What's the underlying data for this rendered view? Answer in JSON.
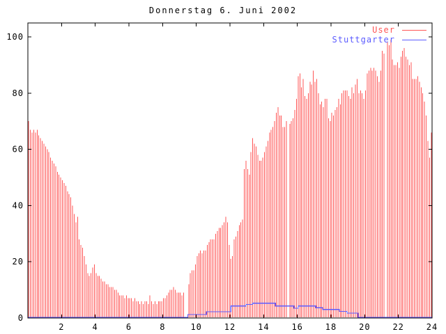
{
  "page": {
    "background": "#ffffff",
    "border_color": "#000000"
  },
  "legend": {
    "items": [
      {
        "label": "User",
        "color": "#ff5555"
      },
      {
        "label": "Stuttgarter",
        "color": "#5c5cff"
      }
    ]
  },
  "chart_data": {
    "type": "bar",
    "title": "Donnerstag 6. Juni 2002",
    "xlabel": "",
    "ylabel": "",
    "x_range": [
      0,
      24
    ],
    "y_range": [
      0,
      105
    ],
    "x_ticks": [
      2,
      4,
      6,
      8,
      10,
      12,
      14,
      16,
      18,
      20,
      22,
      24
    ],
    "y_ticks": [
      0,
      20,
      40,
      60,
      80,
      100
    ],
    "grid": false,
    "legend_position": "top-right-inside",
    "x_unit": "hour of day",
    "series": [
      {
        "name": "User",
        "style": "impulses",
        "color": "#ff5555",
        "x_start": 0.05,
        "x_step": 0.1,
        "values": [
          70,
          67,
          66,
          67,
          66,
          67,
          65,
          64,
          63,
          62,
          61,
          60,
          59,
          57,
          56,
          55,
          54,
          52,
          51,
          50,
          49,
          48,
          47,
          45,
          44,
          43,
          40,
          37,
          34,
          36,
          28,
          26,
          25,
          22,
          19,
          16,
          15,
          16,
          18,
          19,
          16,
          15,
          15,
          14,
          13,
          13,
          12,
          12,
          11,
          11,
          11,
          10,
          10,
          9,
          8,
          8,
          8,
          7,
          8,
          7,
          7,
          7,
          6,
          7,
          6,
          6,
          5,
          6,
          5,
          6,
          6,
          5,
          8,
          6,
          5,
          6,
          5,
          6,
          6,
          6,
          7,
          7,
          8,
          9,
          10,
          10,
          11,
          10,
          9,
          9,
          9,
          8,
          9,
          null,
          null,
          12,
          16,
          17,
          17,
          19,
          22,
          23,
          24,
          23,
          24,
          24,
          26,
          27,
          28,
          28,
          28,
          30,
          31,
          32,
          32,
          33,
          34,
          36,
          34,
          26,
          21,
          22,
          28,
          29,
          31,
          33,
          34,
          35,
          53,
          56,
          53,
          51,
          59,
          64,
          62,
          61,
          58,
          56,
          56,
          57,
          59,
          61,
          63,
          66,
          67,
          68,
          70,
          73,
          75,
          72,
          72,
          68,
          68,
          70,
          null,
          69,
          70,
          71,
          74,
          78,
          86,
          87,
          82,
          85,
          79,
          78,
          80,
          84,
          83,
          88,
          84,
          85,
          80,
          76,
          77,
          75,
          78,
          78,
          71,
          70,
          73,
          72,
          74,
          75,
          78,
          76,
          80,
          81,
          81,
          81,
          79,
          78,
          82,
          80,
          83,
          85,
          80,
          81,
          80,
          78,
          81,
          87,
          88,
          89,
          88,
          89,
          88,
          86,
          84,
          88,
          95,
          94,
          null,
          98,
          97,
          99,
          92,
          90,
          90,
          91,
          89,
          93,
          95,
          96,
          93,
          92,
          90,
          91,
          85,
          85,
          85,
          86,
          84,
          82,
          80,
          77,
          72,
          63,
          57,
          66
        ]
      },
      {
        "name": "Stuttgarter",
        "style": "steps",
        "color": "#5c5cff",
        "points": [
          [
            0,
            0
          ],
          [
            9.5,
            1
          ],
          [
            10.6,
            2
          ],
          [
            12.05,
            4
          ],
          [
            12.95,
            4.6
          ],
          [
            13.35,
            5
          ],
          [
            14.7,
            4
          ],
          [
            15.8,
            3.2
          ],
          [
            16.05,
            4
          ],
          [
            17.1,
            3.4
          ],
          [
            17.5,
            2.8
          ],
          [
            18.5,
            2.1
          ],
          [
            18.95,
            1.5
          ],
          [
            19.6,
            0
          ],
          [
            24,
            0
          ]
        ]
      }
    ]
  }
}
